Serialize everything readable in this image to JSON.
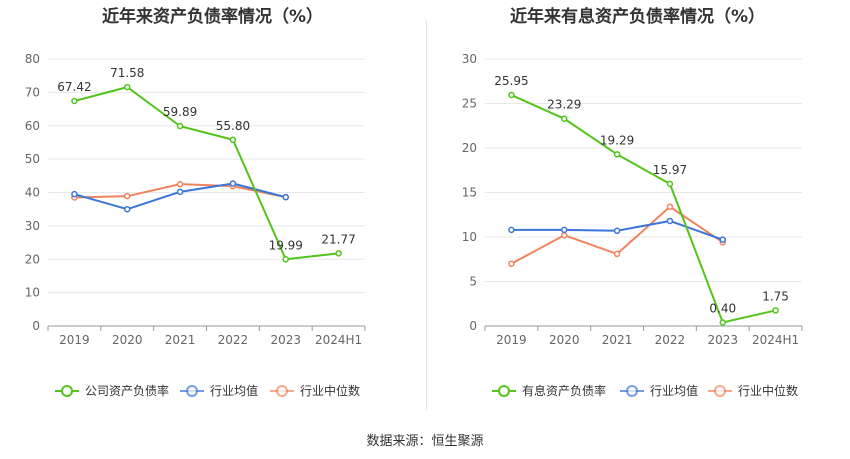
{
  "source_text": "数据来源：恒生聚源",
  "chart_data": [
    {
      "type": "line",
      "title": "近年来资产负债率情况（%）",
      "categories": [
        "2019",
        "2020",
        "2021",
        "2022",
        "2023",
        "2024H1"
      ],
      "ylim": [
        0,
        80
      ],
      "yticks": [
        0,
        10,
        20,
        30,
        40,
        50,
        60,
        70,
        80
      ],
      "legend_position": "bottom",
      "series": [
        {
          "name": "公司资产负债率",
          "color": "#52c41a",
          "values": [
            67.42,
            71.58,
            59.89,
            55.8,
            19.99,
            21.77
          ],
          "labels": [
            "67.42",
            "71.58",
            "59.89",
            "55.80",
            "19.99",
            "21.77"
          ]
        },
        {
          "name": "行业均值",
          "color": "#3a75d9",
          "values": [
            39.5,
            35.0,
            40.2,
            42.7,
            38.6,
            null
          ]
        },
        {
          "name": "行业中位数",
          "color": "#f0845e",
          "values": [
            38.5,
            38.9,
            42.5,
            41.9,
            38.6,
            null
          ]
        }
      ]
    },
    {
      "type": "line",
      "title": "近年来有息资产负债率情况（%）",
      "categories": [
        "2019",
        "2020",
        "2021",
        "2022",
        "2023",
        "2024H1"
      ],
      "ylim": [
        0,
        30
      ],
      "yticks": [
        0,
        5,
        10,
        15,
        20,
        25,
        30
      ],
      "legend_position": "bottom",
      "series": [
        {
          "name": "有息资产负债率",
          "color": "#52c41a",
          "values": [
            25.95,
            23.29,
            19.29,
            15.97,
            0.4,
            1.75
          ],
          "labels": [
            "25.95",
            "23.29",
            "19.29",
            "15.97",
            "0.40",
            "1.75"
          ]
        },
        {
          "name": "行业均值",
          "color": "#3a75d9",
          "values": [
            10.8,
            10.8,
            10.7,
            11.8,
            9.7,
            null
          ]
        },
        {
          "name": "行业中位数",
          "color": "#f0845e",
          "values": [
            7.0,
            10.2,
            8.1,
            13.4,
            9.4,
            null
          ]
        }
      ]
    }
  ]
}
